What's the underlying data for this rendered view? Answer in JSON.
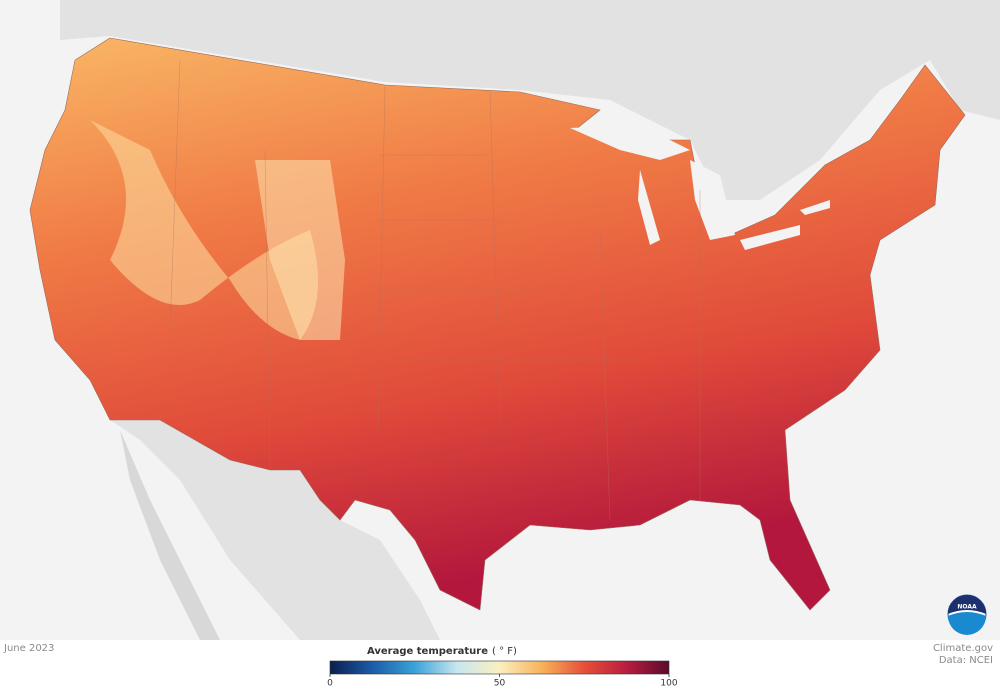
{
  "date": "June 2023",
  "legend": {
    "title": "Average temperature",
    "unit": "( ° F)",
    "lim": [
      0,
      100
    ],
    "ticks": [
      0,
      50,
      100
    ],
    "colors": [
      "#0b1f4d",
      "#1c5ba8",
      "#3aa3d8",
      "#c8e6f0",
      "#fbf0c0",
      "#f7b25a",
      "#e6503a",
      "#b81e3f",
      "#5a0a2c"
    ]
  },
  "credit": "Climate.gov",
  "source": "Data: NCEI",
  "logo": "NOAA"
}
